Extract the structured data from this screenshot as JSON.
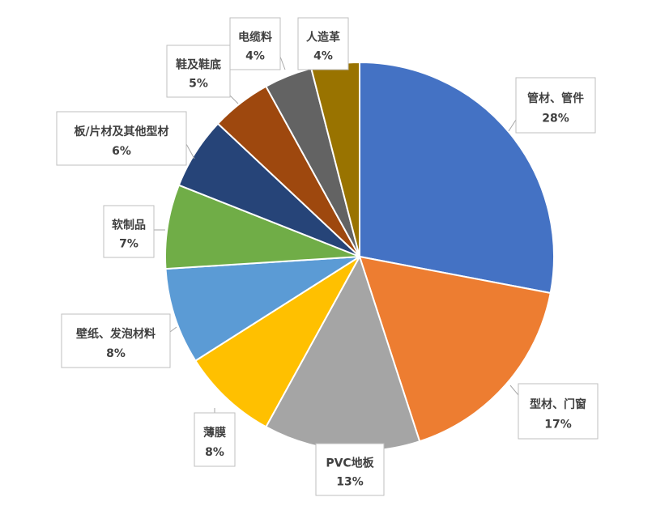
{
  "chart_data": {
    "type": "pie",
    "start_angle_deg": 0,
    "direction": "clockwise",
    "slices": [
      {
        "label": "管材、管件",
        "value": 28,
        "value_label": "28%",
        "color": "#4472C4"
      },
      {
        "label": "型材、门窗",
        "value": 17,
        "value_label": "17%",
        "color": "#ED7D31"
      },
      {
        "label": "PVC地板",
        "value": 13,
        "value_label": "13%",
        "color": "#A5A5A5"
      },
      {
        "label": "薄膜",
        "value": 8,
        "value_label": "8%",
        "color": "#FFC000"
      },
      {
        "label": "壁纸、发泡材料",
        "value": 8,
        "value_label": "8%",
        "color": "#5B9BD5"
      },
      {
        "label": "软制品",
        "value": 7,
        "value_label": "7%",
        "color": "#70AD47"
      },
      {
        "label": "板/片材及其他型材",
        "value": 6,
        "value_label": "6%",
        "color": "#264478"
      },
      {
        "label": "鞋及鞋底",
        "value": 5,
        "value_label": "5%",
        "color": "#9E480E"
      },
      {
        "label": "电缆料",
        "value": 4,
        "value_label": "4%",
        "color": "#636363"
      },
      {
        "label": "人造革",
        "value": 4,
        "value_label": "4%",
        "color": "#997300"
      }
    ]
  }
}
